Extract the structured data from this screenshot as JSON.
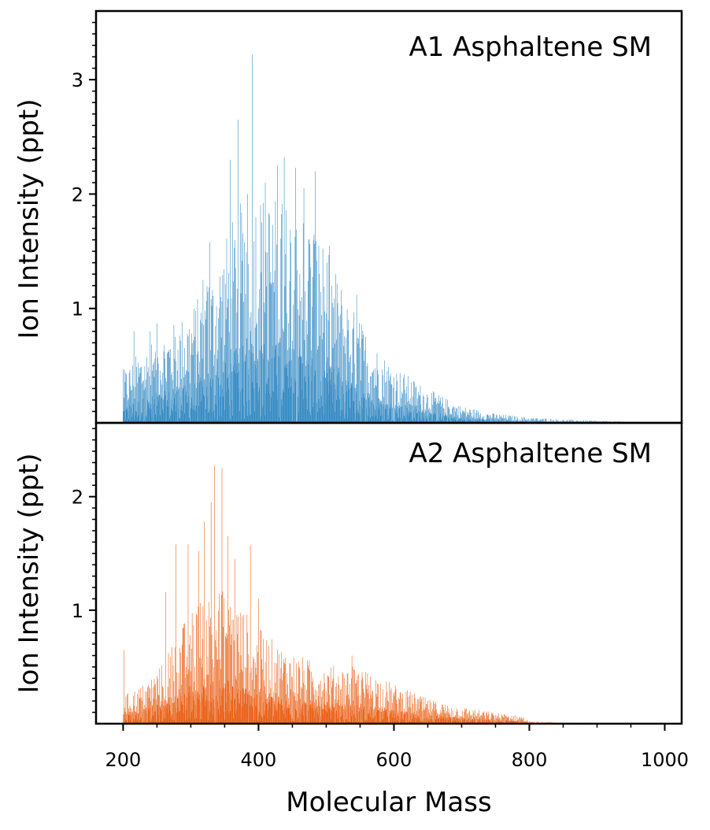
{
  "chart_data": [
    {
      "type": "bar",
      "panel": "top",
      "title": "A1 Asphaltene SM",
      "xlabel": "",
      "ylabel": "Ion Intensity (ppt)",
      "xlim": [
        160,
        1025
      ],
      "ylim": [
        0,
        3.6
      ],
      "xticks": [],
      "yticks": [
        1,
        2,
        3
      ],
      "color": "#2e86c1",
      "envelope": [
        [
          200,
          0.45
        ],
        [
          220,
          0.6
        ],
        [
          250,
          0.75
        ],
        [
          280,
          0.9
        ],
        [
          300,
          1.0
        ],
        [
          330,
          1.3
        ],
        [
          350,
          1.6
        ],
        [
          370,
          1.9
        ],
        [
          390,
          2.1
        ],
        [
          420,
          2.0
        ],
        [
          450,
          1.95
        ],
        [
          480,
          1.8
        ],
        [
          510,
          1.4
        ],
        [
          540,
          1.0
        ],
        [
          570,
          0.7
        ],
        [
          600,
          0.5
        ],
        [
          650,
          0.3
        ],
        [
          700,
          0.15
        ],
        [
          750,
          0.08
        ],
        [
          800,
          0.05
        ],
        [
          850,
          0.03
        ],
        [
          900,
          0.02
        ],
        [
          950,
          0.01
        ],
        [
          985,
          0.005
        ]
      ],
      "peaks": [
        [
          200,
          0.47
        ],
        [
          216,
          0.8
        ],
        [
          240,
          0.8
        ],
        [
          250,
          0.87
        ],
        [
          318,
          1.25
        ],
        [
          328,
          1.58
        ],
        [
          358,
          2.3
        ],
        [
          370,
          2.65
        ],
        [
          384,
          2.0
        ],
        [
          391,
          3.22
        ],
        [
          410,
          2.1
        ],
        [
          428,
          2.25
        ],
        [
          438,
          2.32
        ],
        [
          455,
          2.23
        ],
        [
          467,
          2.05
        ],
        [
          484,
          2.2
        ],
        [
          505,
          1.55
        ],
        [
          545,
          1.12
        ]
      ]
    },
    {
      "type": "bar",
      "panel": "bottom",
      "title": "A2 Asphaltene SM",
      "xlabel": "Molecular Mass",
      "ylabel": "Ion Intensity (ppt)",
      "xlim": [
        160,
        1025
      ],
      "ylim": [
        0,
        2.65
      ],
      "xticks": [
        200,
        400,
        600,
        800,
        1000
      ],
      "yticks": [
        1,
        2
      ],
      "color": "#e8590c",
      "envelope": [
        [
          200,
          0.25
        ],
        [
          230,
          0.35
        ],
        [
          260,
          0.55
        ],
        [
          280,
          0.8
        ],
        [
          300,
          1.0
        ],
        [
          320,
          1.15
        ],
        [
          340,
          1.2
        ],
        [
          360,
          1.15
        ],
        [
          380,
          1.0
        ],
        [
          400,
          0.85
        ],
        [
          430,
          0.7
        ],
        [
          460,
          0.6
        ],
        [
          500,
          0.52
        ],
        [
          540,
          0.5
        ],
        [
          570,
          0.45
        ],
        [
          600,
          0.35
        ],
        [
          650,
          0.22
        ],
        [
          700,
          0.15
        ],
        [
          750,
          0.1
        ],
        [
          790,
          0.07
        ],
        [
          800,
          0.02
        ],
        [
          850,
          0.01
        ],
        [
          935,
          0.005
        ]
      ],
      "peaks": [
        [
          201,
          0.65
        ],
        [
          263,
          1.16
        ],
        [
          278,
          1.58
        ],
        [
          296,
          1.58
        ],
        [
          312,
          1.52
        ],
        [
          320,
          1.78
        ],
        [
          330,
          1.95
        ],
        [
          335,
          2.27
        ],
        [
          346,
          2.25
        ],
        [
          355,
          1.65
        ],
        [
          365,
          1.45
        ],
        [
          388,
          1.57
        ],
        [
          400,
          1.1
        ],
        [
          538,
          0.6
        ]
      ]
    }
  ]
}
